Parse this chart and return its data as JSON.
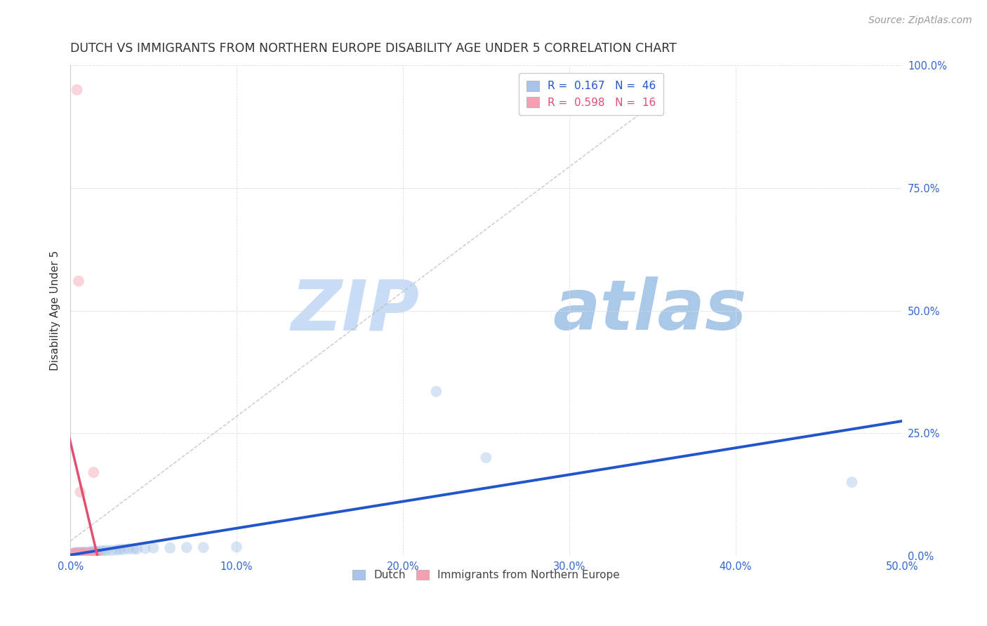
{
  "title": "DUTCH VS IMMIGRANTS FROM NORTHERN EUROPE DISABILITY AGE UNDER 5 CORRELATION CHART",
  "source": "Source: ZipAtlas.com",
  "ylabel": "Disability Age Under 5",
  "xlim": [
    0.0,
    0.5
  ],
  "ylim": [
    0.0,
    1.0
  ],
  "xticks": [
    0.0,
    0.1,
    0.2,
    0.3,
    0.4,
    0.5
  ],
  "xticklabels": [
    "0.0%",
    "10.0%",
    "20.0%",
    "30.0%",
    "40.0%",
    "50.0%"
  ],
  "yticks": [
    0.0,
    0.25,
    0.5,
    0.75,
    1.0
  ],
  "yticklabels": [
    "0.0%",
    "25.0%",
    "50.0%",
    "75.0%",
    "100.0%"
  ],
  "dutch_color": "#a8c4e8",
  "immigrants_color": "#f4a0b0",
  "dutch_line_color": "#2255cc",
  "immigrants_line_color": "#e05070",
  "ref_line_color": "#bbbbbb",
  "watermark_zip": "ZIP",
  "watermark_atlas": "atlas",
  "watermark_color_zip": "#c8ddf5",
  "watermark_color_atlas": "#aac8e8",
  "background_color": "#ffffff",
  "grid_color": "#dddddd",
  "dutch_x": [
    0.001,
    0.002,
    0.002,
    0.003,
    0.003,
    0.003,
    0.004,
    0.004,
    0.004,
    0.005,
    0.005,
    0.005,
    0.006,
    0.006,
    0.007,
    0.007,
    0.007,
    0.008,
    0.008,
    0.009,
    0.01,
    0.011,
    0.012,
    0.013,
    0.014,
    0.015,
    0.016,
    0.018,
    0.02,
    0.022,
    0.025,
    0.028,
    0.03,
    0.032,
    0.035,
    0.038,
    0.04,
    0.045,
    0.05,
    0.06,
    0.07,
    0.08,
    0.1,
    0.22,
    0.25,
    0.47
  ],
  "dutch_y": [
    0.004,
    0.003,
    0.005,
    0.004,
    0.005,
    0.006,
    0.004,
    0.005,
    0.006,
    0.004,
    0.005,
    0.007,
    0.005,
    0.006,
    0.005,
    0.006,
    0.007,
    0.006,
    0.007,
    0.006,
    0.007,
    0.007,
    0.008,
    0.008,
    0.008,
    0.009,
    0.009,
    0.01,
    0.01,
    0.011,
    0.011,
    0.012,
    0.013,
    0.013,
    0.014,
    0.014,
    0.014,
    0.015,
    0.016,
    0.016,
    0.017,
    0.017,
    0.018,
    0.335,
    0.2,
    0.15
  ],
  "immigrants_x": [
    0.001,
    0.002,
    0.003,
    0.004,
    0.005,
    0.005,
    0.006,
    0.007,
    0.008,
    0.009,
    0.01,
    0.012,
    0.013,
    0.014,
    0.015,
    0.016
  ],
  "immigrants_y": [
    0.003,
    0.004,
    0.006,
    0.95,
    0.005,
    0.56,
    0.13,
    0.005,
    0.006,
    0.005,
    0.005,
    0.006,
    0.005,
    0.17,
    0.005,
    0.005
  ],
  "dutch_R": 0.167,
  "dutch_N": 46,
  "immigrants_R": 0.598,
  "immigrants_N": 16,
  "marker_size": 130,
  "marker_alpha": 0.45,
  "title_fontsize": 12.5,
  "axis_label_fontsize": 11,
  "tick_fontsize": 10.5,
  "legend_fontsize": 11,
  "source_fontsize": 10
}
